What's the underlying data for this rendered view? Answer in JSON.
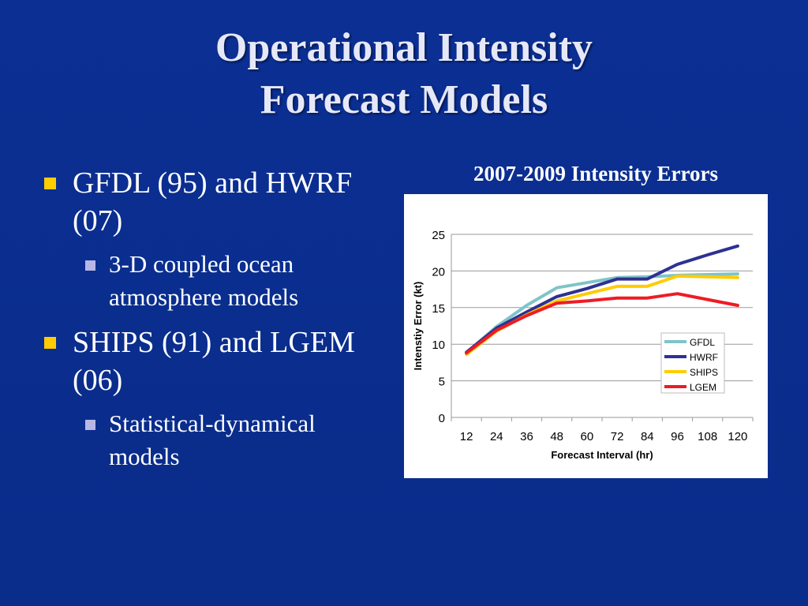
{
  "slide": {
    "title_line1": "Operational Intensity",
    "title_line2": "Forecast Models",
    "bullets": [
      {
        "text": "GFDL (95) and HWRF (07)",
        "sub": "3-D coupled ocean atmosphere models"
      },
      {
        "text": "SHIPS  (91) and LGEM (06)",
        "sub": "Statistical-dynamical models"
      }
    ],
    "colors": {
      "background": "#0b2f93",
      "bullet": "#ffcc00",
      "sub_bullet": "#b7b7e6"
    }
  },
  "chart_data": {
    "type": "line",
    "title": "2007-2009 Intensity Errors",
    "xlabel": "Forecast Interval (hr)",
    "ylabel": "Intenstiy Error (kt)",
    "categories": [
      "12",
      "24",
      "36",
      "48",
      "60",
      "72",
      "84",
      "96",
      "108",
      "120"
    ],
    "ylim": [
      0,
      25
    ],
    "yticks": [
      0,
      5,
      10,
      15,
      20,
      25
    ],
    "grid": true,
    "legend_position": "right",
    "series": [
      {
        "name": "GFDL",
        "color": "#7fc4c8",
        "values": [
          8.8,
          12.4,
          15.3,
          17.7,
          18.4,
          19.1,
          19.2,
          19.4,
          19.5,
          19.6
        ]
      },
      {
        "name": "HWRF",
        "color": "#2e3192",
        "values": [
          8.9,
          12.2,
          14.4,
          16.5,
          17.6,
          18.9,
          18.9,
          20.9,
          22.2,
          23.4
        ]
      },
      {
        "name": "SHIPS",
        "color": "#ffcc00",
        "values": [
          8.6,
          11.8,
          14.0,
          15.9,
          16.9,
          17.9,
          17.9,
          19.3,
          19.2,
          19.1
        ]
      },
      {
        "name": "LGEM",
        "color": "#ee1c24",
        "values": [
          8.8,
          11.9,
          13.9,
          15.6,
          15.9,
          16.3,
          16.3,
          16.9,
          16.1,
          15.3
        ]
      }
    ]
  }
}
